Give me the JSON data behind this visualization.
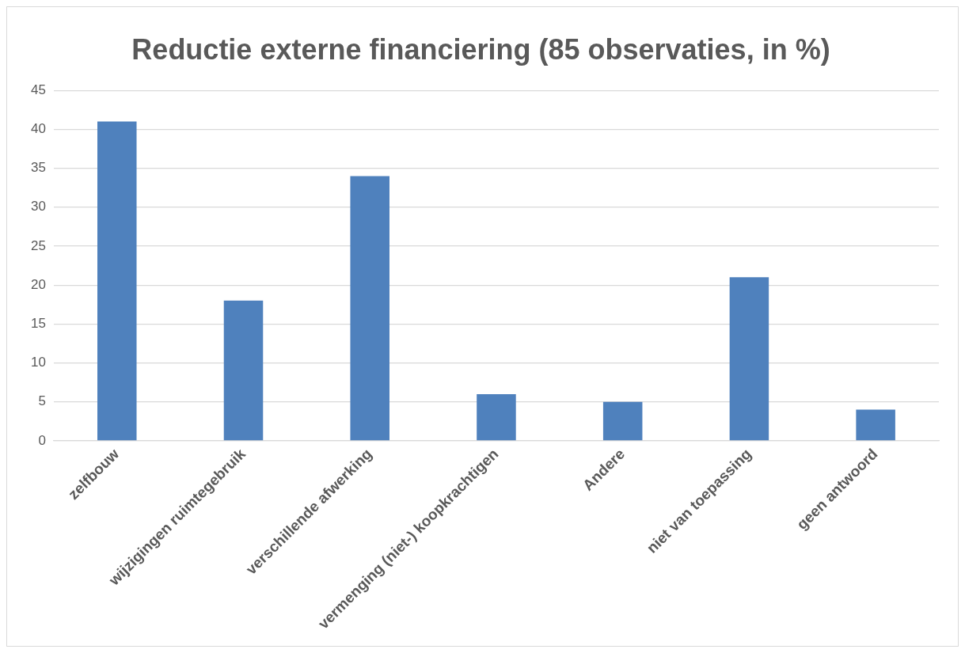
{
  "chart_data": {
    "type": "bar",
    "title": "Reductie externe financiering (85 observaties, in %)",
    "categories": [
      "zelfbouw",
      "wijzigingen ruimtegebruik",
      "verschillende afwerking",
      "vermenging (niet-) koopkrachtigen",
      "Andere",
      "niet van toepassing",
      "geen antwoord"
    ],
    "values": [
      41,
      18,
      34,
      6,
      5,
      21,
      4
    ],
    "color": "#4f81bd",
    "ylim": [
      0,
      45
    ],
    "yticks": [
      0,
      5,
      10,
      15,
      20,
      25,
      30,
      35,
      40,
      45
    ],
    "grid": "y",
    "legend": false
  }
}
